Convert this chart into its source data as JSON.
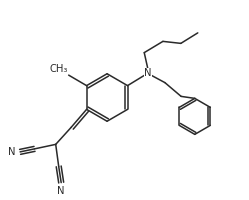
{
  "bg_color": "#ffffff",
  "line_color": "#2a2a2a",
  "lw": 1.1,
  "fs": 7.2,
  "xlim": [
    0,
    10
  ],
  "ylim": [
    0,
    8
  ],
  "ring_r": 0.95,
  "ph_r": 0.72
}
